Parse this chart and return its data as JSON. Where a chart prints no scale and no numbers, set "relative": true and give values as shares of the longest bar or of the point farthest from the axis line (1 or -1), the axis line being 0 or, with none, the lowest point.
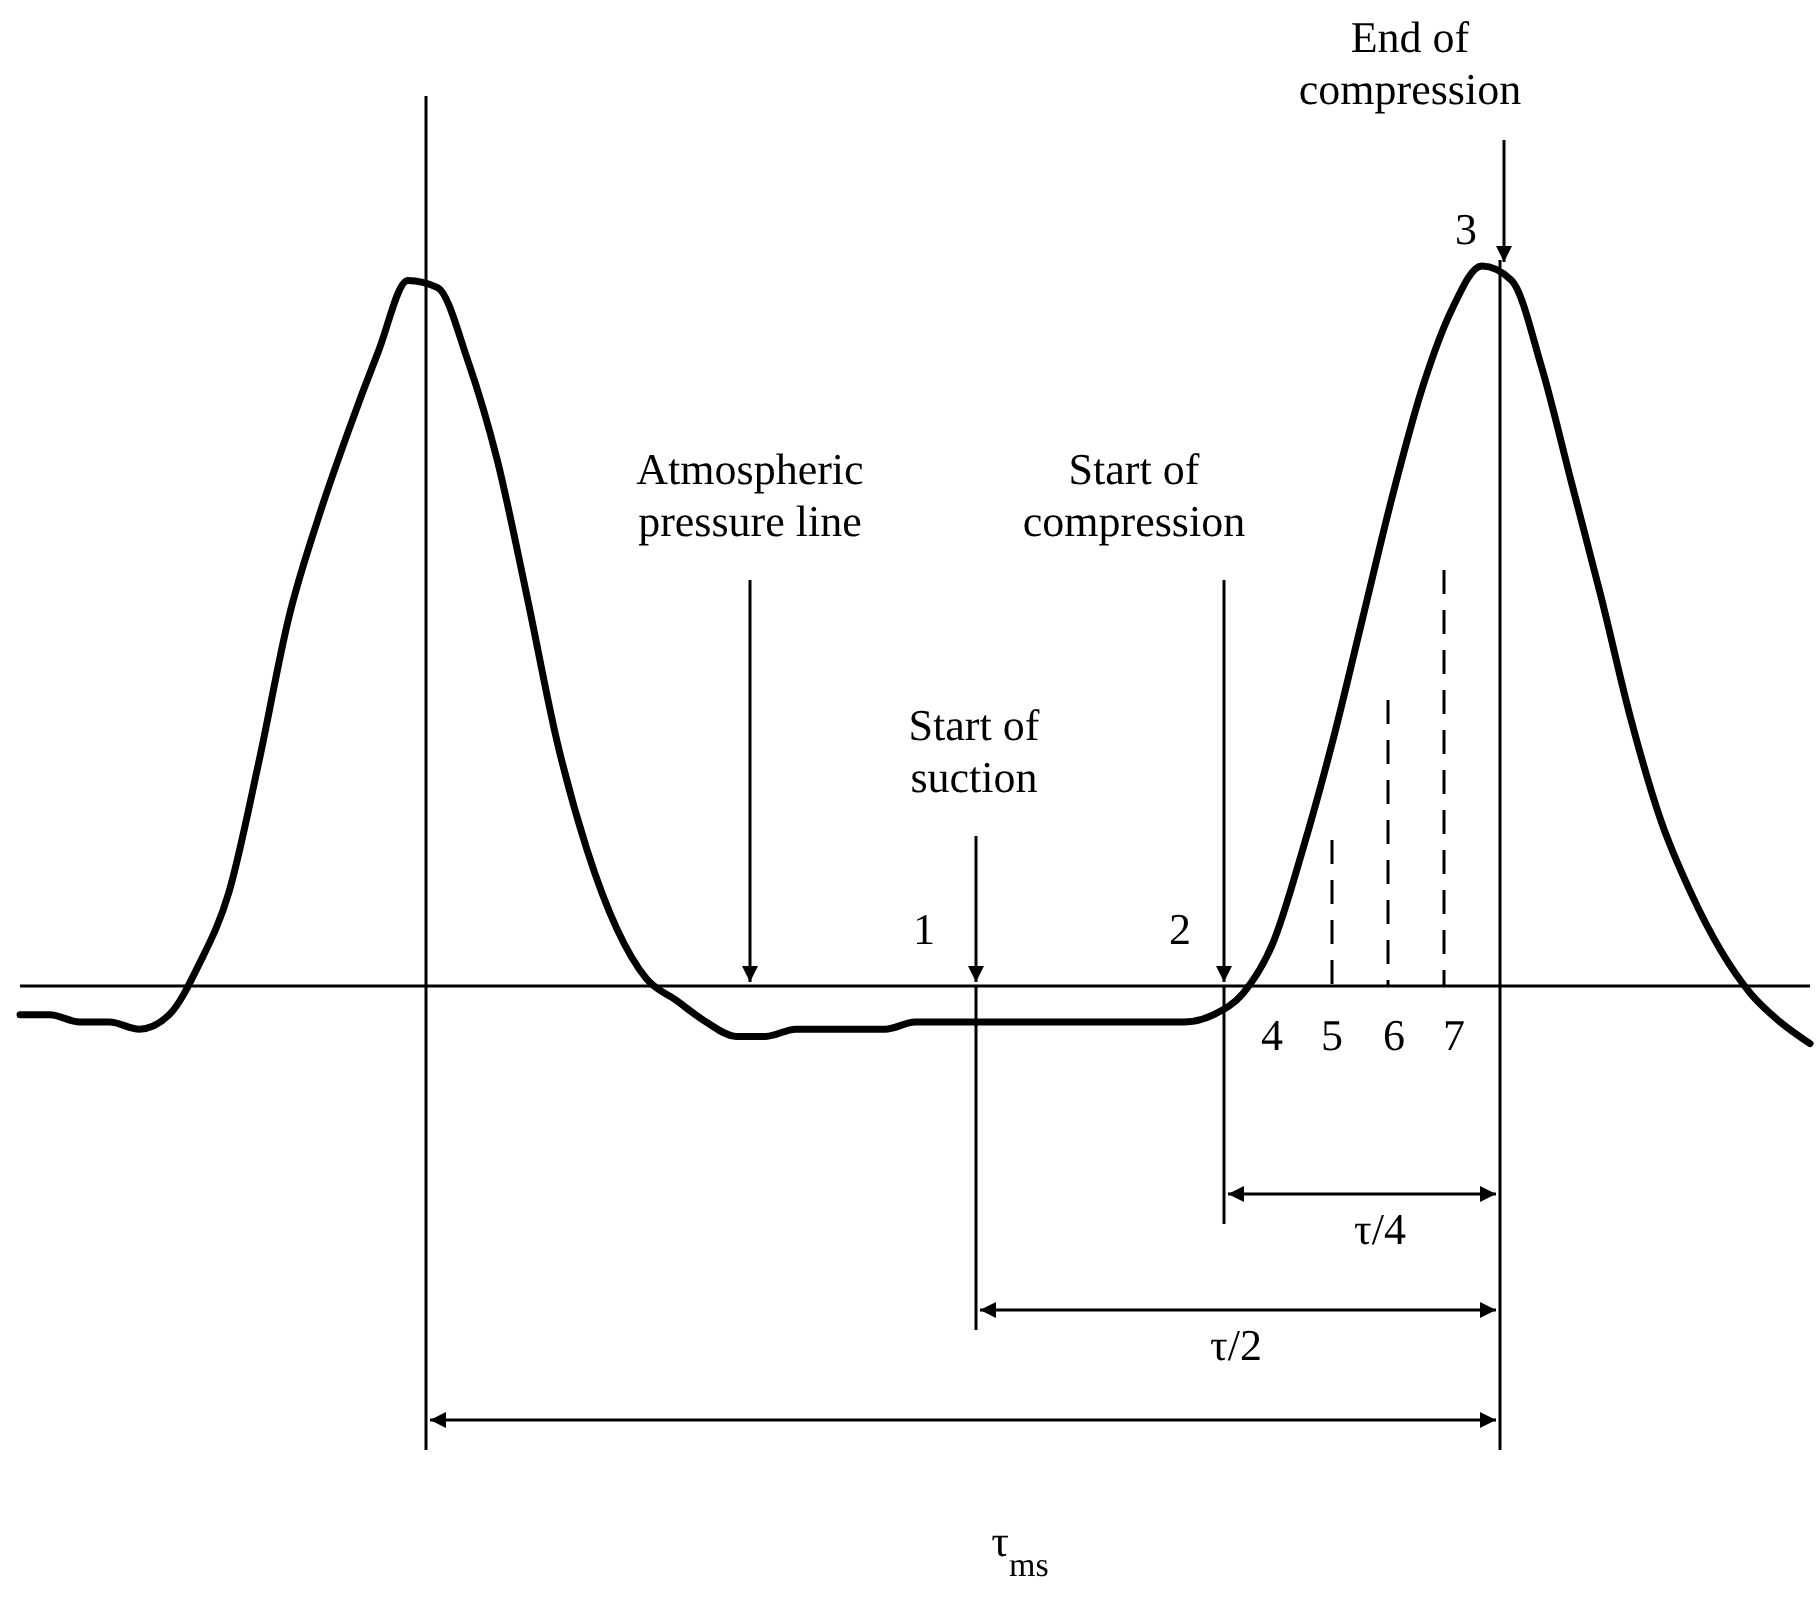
{
  "chart_data": {
    "type": "line",
    "relative": true,
    "tick_labels": false,
    "categories": [
      null,
      null,
      null,
      null,
      null,
      null,
      null,
      null,
      null,
      null,
      null,
      null,
      null,
      null,
      null,
      null,
      null,
      null,
      null,
      null,
      null,
      null,
      null,
      null,
      null,
      null,
      null,
      null,
      null,
      null,
      null,
      null,
      null,
      null,
      null,
      null,
      null,
      null,
      null,
      null,
      null,
      null,
      null,
      null,
      null,
      null,
      null,
      null,
      null,
      null,
      null,
      null,
      null,
      null,
      null,
      null,
      null,
      null,
      null,
      null,
      null
    ],
    "series": [
      {
        "color": "#000000",
        "values": [
          -0.04,
          -0.04,
          -0.05,
          -0.05,
          -0.06,
          -0.04,
          0.03,
          0.13,
          0.31,
          0.51,
          0.65,
          0.77,
          0.88,
          0.98,
          0.97,
          0.87,
          0.73,
          0.54,
          0.34,
          0.19,
          0.08,
          0.01,
          -0.02,
          -0.05,
          -0.07,
          -0.07,
          -0.06,
          -0.06,
          -0.06,
          -0.06,
          -0.05,
          -0.05,
          -0.05,
          -0.05,
          -0.05,
          -0.05,
          -0.05,
          -0.05,
          -0.05,
          -0.05,
          -0.04,
          -0.01,
          0.06,
          0.19,
          0.34,
          0.51,
          0.68,
          0.83,
          0.94,
          1.0,
          0.98,
          0.86,
          0.7,
          0.54,
          0.37,
          0.23,
          0.13,
          0.05,
          -0.01,
          -0.05,
          -0.08
        ]
      }
    ],
    "annotations": [
      "End of compression",
      "Atmospheric pressure line",
      "Start of compression",
      "Start of suction",
      "1",
      "2",
      "3",
      "4",
      "5",
      "6",
      "7",
      "τ/4",
      "τ/2",
      "τ$_{ms}$"
    ]
  }
}
